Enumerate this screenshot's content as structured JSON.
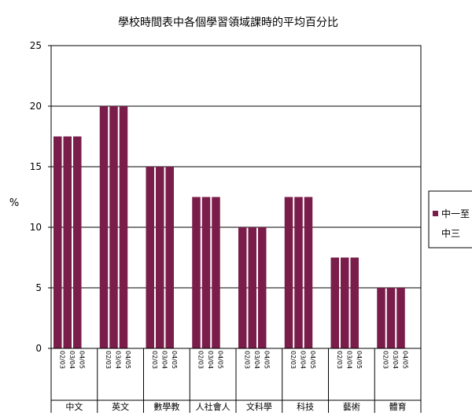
{
  "chart_data": {
    "type": "bar",
    "title": "學校時間表中各個學習領域課時的平均百分比",
    "xlabel": "",
    "ylabel": "%",
    "ylim": [
      0,
      25
    ],
    "yticks": [
      "0",
      "5",
      "10",
      "15",
      "20",
      "25"
    ],
    "grid": true,
    "legend_position": "right",
    "bar_color": "#7a1d4a",
    "groups": [
      {
        "label": "中文",
        "bars": [
          {
            "year": "02/03",
            "value": 17.5
          },
          {
            "year": "03/04",
            "value": 17.5
          },
          {
            "year": "04/05",
            "value": 17.5
          }
        ]
      },
      {
        "label": "英文",
        "bars": [
          {
            "year": "02/03",
            "value": 20
          },
          {
            "year": "03/04",
            "value": 20
          },
          {
            "year": "04/05",
            "value": 20
          }
        ]
      },
      {
        "label": "數學教",
        "bars": [
          {
            "year": "02/03",
            "value": 15
          },
          {
            "year": "03/04",
            "value": 15
          },
          {
            "year": "04/05",
            "value": 15
          }
        ]
      },
      {
        "label": "人社會人",
        "bars": [
          {
            "year": "02/03",
            "value": 12.5
          },
          {
            "year": "03/04",
            "value": 12.5
          },
          {
            "year": "04/05",
            "value": 12.5
          }
        ]
      },
      {
        "label": "文科學",
        "bars": [
          {
            "year": "02/03",
            "value": 10
          },
          {
            "year": "03/04",
            "value": 10
          },
          {
            "year": "04/05",
            "value": 10
          }
        ]
      },
      {
        "label": "科技",
        "bars": [
          {
            "year": "02/03",
            "value": 12.5
          },
          {
            "year": "03/04",
            "value": 12.5
          },
          {
            "year": "04/05",
            "value": 12.5
          }
        ]
      },
      {
        "label": "藝術",
        "bars": [
          {
            "year": "02/03",
            "value": 7.5
          },
          {
            "year": "03/04",
            "value": 7.5
          },
          {
            "year": "04/05",
            "value": 7.5
          }
        ]
      },
      {
        "label": "體育",
        "bars": [
          {
            "year": "02/03",
            "value": 5
          },
          {
            "year": "03/04",
            "value": 5
          },
          {
            "year": "04/05",
            "value": 5
          }
        ]
      }
    ],
    "legend": {
      "entries": [
        "中一至",
        "中三"
      ]
    }
  }
}
